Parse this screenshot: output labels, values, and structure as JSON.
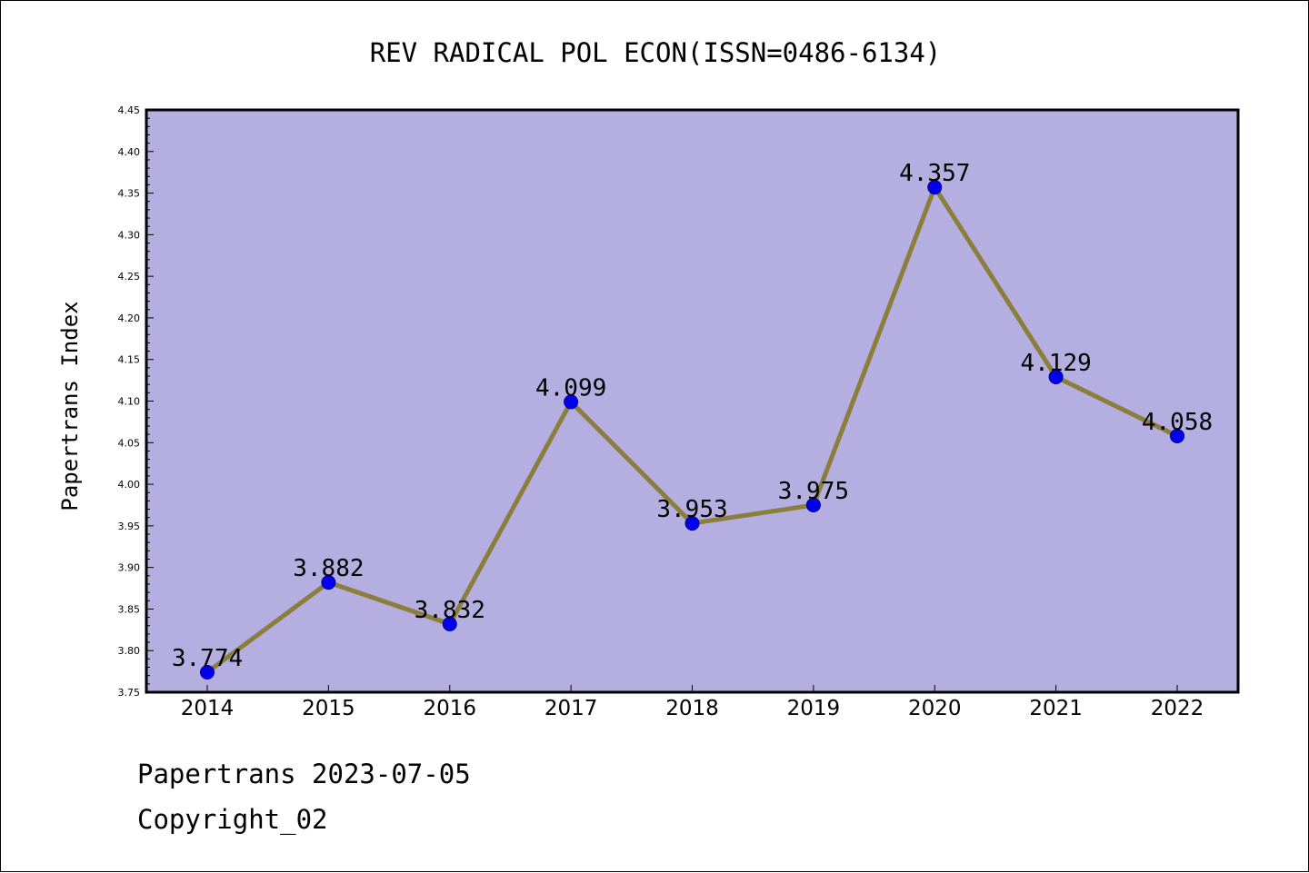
{
  "chart_data": {
    "type": "line",
    "title": "REV RADICAL POL ECON(ISSN=0486-6134)",
    "xlabel": "",
    "ylabel": "Papertrans Index",
    "categories": [
      "2014",
      "2015",
      "2016",
      "2017",
      "2018",
      "2019",
      "2020",
      "2021",
      "2022"
    ],
    "series": [
      {
        "values": [
          3.774,
          3.882,
          3.832,
          4.099,
          3.953,
          3.975,
          4.357,
          4.129,
          4.058
        ],
        "line_color": "#8b7d3a",
        "marker_color": "#0000ee"
      }
    ],
    "data_labels": [
      "3.774",
      "3.882",
      "3.832",
      "4.099",
      "3.953",
      "3.975",
      "4.357",
      "4.129",
      "4.058"
    ],
    "ylim": [
      3.75,
      4.45
    ],
    "yticks": [
      "3.75",
      "3.80",
      "3.85",
      "3.90",
      "3.95",
      "4.00",
      "4.05",
      "4.10",
      "4.15",
      "4.20",
      "4.25",
      "4.30",
      "4.35",
      "4.40",
      "4.45"
    ],
    "grid": false,
    "plot_background": "#b4aee1"
  },
  "footer": {
    "line1": "Papertrans 2023-07-05",
    "line2": "Copyright_02"
  }
}
